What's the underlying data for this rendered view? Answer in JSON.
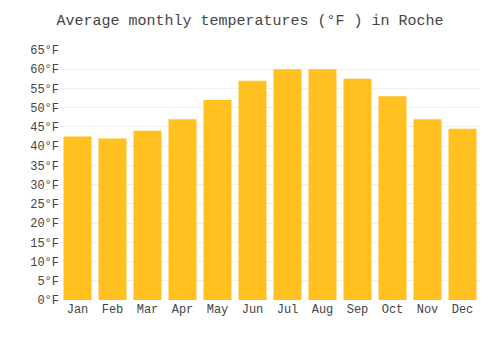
{
  "chart_data": {
    "type": "bar",
    "title": "Average monthly temperatures (°F ) in Roche",
    "categories": [
      "Jan",
      "Feb",
      "Mar",
      "Apr",
      "May",
      "Jun",
      "Jul",
      "Aug",
      "Sep",
      "Oct",
      "Nov",
      "Dec"
    ],
    "values": [
      42.5,
      42.0,
      44.0,
      47.0,
      52.0,
      57.0,
      60.0,
      60.0,
      57.5,
      53.0,
      47.0,
      44.5
    ],
    "color": "#FFC020",
    "ylim": [
      0,
      65
    ],
    "yticks": [
      {
        "value": 0,
        "label": "0°F"
      },
      {
        "value": 5,
        "label": "5°F"
      },
      {
        "value": 10,
        "label": "10°F"
      },
      {
        "value": 15,
        "label": "15°F"
      },
      {
        "value": 20,
        "label": "20°F"
      },
      {
        "value": 25,
        "label": "25°F"
      },
      {
        "value": 30,
        "label": "30°F"
      },
      {
        "value": 35,
        "label": "35°F"
      },
      {
        "value": 40,
        "label": "40°F"
      },
      {
        "value": 45,
        "label": "45°F"
      },
      {
        "value": 50,
        "label": "50°F"
      },
      {
        "value": 55,
        "label": "55°F"
      },
      {
        "value": 60,
        "label": "60°F"
      },
      {
        "value": 65,
        "label": "65°F"
      }
    ],
    "grid": true
  }
}
